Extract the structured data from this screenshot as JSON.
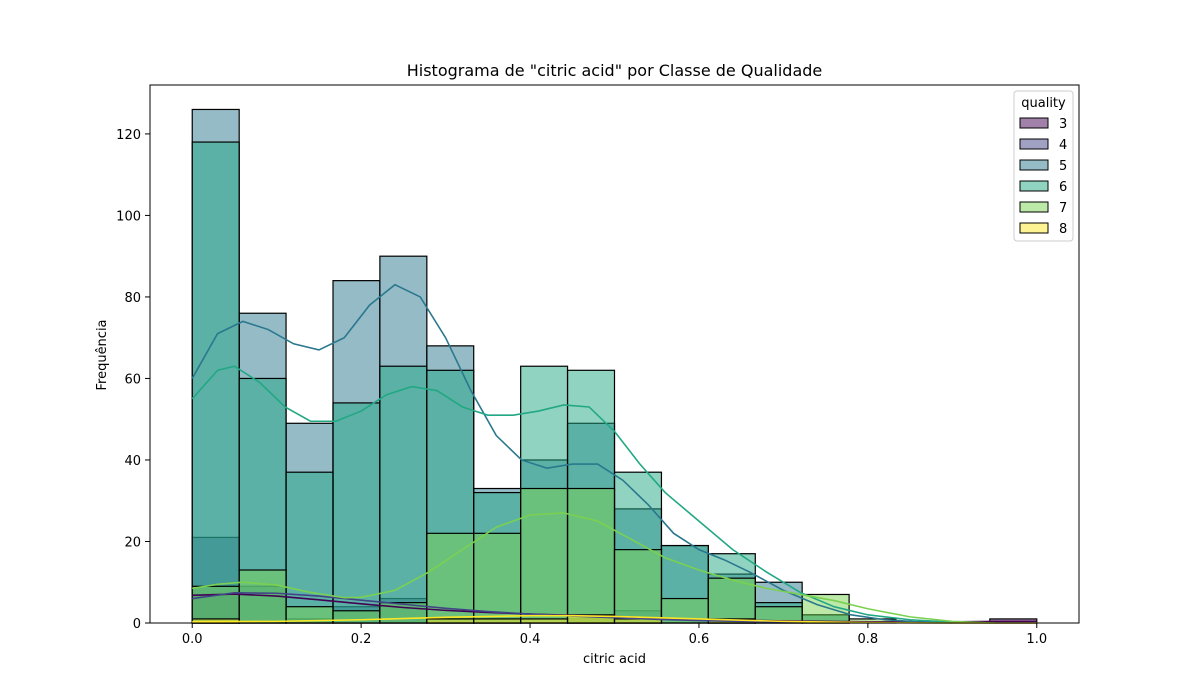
{
  "chart_data": {
    "type": "histogram",
    "title": "Histograma de \"citric acid\" por Classe de Qualidade",
    "xlabel": "citric acid",
    "ylabel": "Frequência",
    "xlim": [
      -0.05,
      1.05
    ],
    "ylim": [
      0,
      132
    ],
    "xticks": [
      0.0,
      0.2,
      0.4,
      0.6,
      0.8,
      1.0
    ],
    "xtick_labels": [
      "0.0",
      "0.2",
      "0.4",
      "0.6",
      "0.8",
      "1.0"
    ],
    "yticks": [
      0,
      20,
      40,
      60,
      80,
      100,
      120
    ],
    "ytick_labels": [
      "0",
      "20",
      "40",
      "60",
      "80",
      "100",
      "120"
    ],
    "bin_width": 0.0556,
    "bin_edges": [
      0.0,
      0.0556,
      0.1111,
      0.1667,
      0.2222,
      0.2778,
      0.3333,
      0.3889,
      0.4444,
      0.5,
      0.5556,
      0.6111,
      0.6667,
      0.7222,
      0.7778,
      0.8333,
      0.8889,
      0.9444,
      1.0
    ],
    "legend": {
      "title": "quality",
      "position": "upper right"
    },
    "series": [
      {
        "name": "3",
        "color": "#440154",
        "counts": [
          7,
          0,
          0,
          0,
          0,
          0,
          0,
          0,
          1,
          0,
          0,
          0,
          0,
          0,
          0,
          0,
          0,
          1
        ],
        "kde": [
          [
            0.0,
            6.8
          ],
          [
            0.05,
            7.1
          ],
          [
            0.1,
            6.6
          ],
          [
            0.15,
            5.7
          ],
          [
            0.2,
            4.7
          ],
          [
            0.25,
            3.8
          ],
          [
            0.3,
            3.1
          ],
          [
            0.35,
            2.6
          ],
          [
            0.4,
            2.2
          ],
          [
            0.45,
            1.9
          ],
          [
            0.5,
            1.6
          ],
          [
            0.55,
            1.2
          ],
          [
            0.6,
            0.9
          ],
          [
            0.7,
            0.5
          ],
          [
            0.8,
            0.3
          ],
          [
            0.9,
            0.3
          ],
          [
            0.95,
            0.4
          ],
          [
            1.0,
            0.4
          ]
        ]
      },
      {
        "name": "4",
        "color": "#414487",
        "counts": [
          21,
          9,
          1,
          4,
          6,
          1,
          1,
          0,
          1,
          3,
          0,
          1,
          0,
          0,
          0,
          0,
          0,
          0
        ],
        "kde": [
          [
            0.0,
            6.0
          ],
          [
            0.05,
            7.4
          ],
          [
            0.1,
            7.3
          ],
          [
            0.15,
            6.6
          ],
          [
            0.2,
            5.6
          ],
          [
            0.25,
            4.6
          ],
          [
            0.3,
            3.6
          ],
          [
            0.35,
            2.8
          ],
          [
            0.4,
            2.2
          ],
          [
            0.45,
            1.7
          ],
          [
            0.5,
            1.3
          ],
          [
            0.55,
            0.9
          ],
          [
            0.6,
            0.6
          ],
          [
            0.7,
            0.2
          ],
          [
            0.8,
            0.1
          ],
          [
            0.9,
            0.0
          ],
          [
            1.0,
            0.0
          ]
        ]
      },
      {
        "name": "5",
        "color": "#2a788e",
        "counts": [
          126,
          76,
          49,
          84,
          90,
          68,
          33,
          40,
          49,
          28,
          19,
          12,
          10,
          2,
          0,
          0,
          0,
          0
        ],
        "kde": [
          [
            0.0,
            60
          ],
          [
            0.03,
            71
          ],
          [
            0.06,
            74
          ],
          [
            0.09,
            72
          ],
          [
            0.12,
            68.5
          ],
          [
            0.15,
            67
          ],
          [
            0.18,
            70
          ],
          [
            0.21,
            78
          ],
          [
            0.24,
            83
          ],
          [
            0.27,
            80
          ],
          [
            0.3,
            70
          ],
          [
            0.33,
            57
          ],
          [
            0.36,
            46
          ],
          [
            0.39,
            40
          ],
          [
            0.42,
            38
          ],
          [
            0.45,
            39
          ],
          [
            0.48,
            39
          ],
          [
            0.51,
            35
          ],
          [
            0.54,
            29
          ],
          [
            0.57,
            22
          ],
          [
            0.6,
            18
          ],
          [
            0.63,
            15.5
          ],
          [
            0.66,
            12.5
          ],
          [
            0.7,
            8
          ],
          [
            0.74,
            4.5
          ],
          [
            0.78,
            2
          ],
          [
            0.82,
            0.8
          ],
          [
            0.86,
            0.3
          ],
          [
            0.9,
            0
          ]
        ]
      },
      {
        "name": "6",
        "color": "#22a884",
        "counts": [
          118,
          60,
          37,
          54,
          63,
          62,
          32,
          63,
          62,
          37,
          19,
          17,
          5,
          2,
          0,
          0,
          0,
          0
        ],
        "kde": [
          [
            0.0,
            55
          ],
          [
            0.03,
            62
          ],
          [
            0.05,
            63
          ],
          [
            0.08,
            59
          ],
          [
            0.11,
            53
          ],
          [
            0.14,
            49.5
          ],
          [
            0.17,
            49.5
          ],
          [
            0.2,
            52
          ],
          [
            0.23,
            56
          ],
          [
            0.26,
            58
          ],
          [
            0.29,
            57
          ],
          [
            0.32,
            53
          ],
          [
            0.35,
            51
          ],
          [
            0.38,
            51
          ],
          [
            0.41,
            52
          ],
          [
            0.44,
            53.5
          ],
          [
            0.47,
            53
          ],
          [
            0.5,
            47
          ],
          [
            0.53,
            39
          ],
          [
            0.56,
            32
          ],
          [
            0.6,
            25
          ],
          [
            0.64,
            18
          ],
          [
            0.68,
            12.5
          ],
          [
            0.72,
            7.5
          ],
          [
            0.76,
            4
          ],
          [
            0.8,
            2
          ],
          [
            0.85,
            0.8
          ],
          [
            0.9,
            0.2
          ],
          [
            0.95,
            0
          ]
        ]
      },
      {
        "name": "7",
        "color": "#7ad151",
        "counts": [
          9,
          13,
          4,
          3,
          5,
          22,
          22,
          33,
          33,
          18,
          6,
          11,
          4,
          7,
          1,
          0,
          0,
          0
        ],
        "kde": [
          [
            0.0,
            8.5
          ],
          [
            0.03,
            9.5
          ],
          [
            0.06,
            10
          ],
          [
            0.1,
            9.3
          ],
          [
            0.14,
            7.5
          ],
          [
            0.18,
            6.2
          ],
          [
            0.2,
            6.3
          ],
          [
            0.24,
            8
          ],
          [
            0.28,
            12.5
          ],
          [
            0.32,
            18
          ],
          [
            0.36,
            23.5
          ],
          [
            0.4,
            26.5
          ],
          [
            0.44,
            27
          ],
          [
            0.48,
            25
          ],
          [
            0.52,
            20.5
          ],
          [
            0.56,
            16
          ],
          [
            0.6,
            13
          ],
          [
            0.64,
            10.5
          ],
          [
            0.68,
            8.5
          ],
          [
            0.72,
            7
          ],
          [
            0.76,
            5.5
          ],
          [
            0.8,
            3.5
          ],
          [
            0.85,
            1.5
          ],
          [
            0.9,
            0.4
          ],
          [
            0.95,
            0
          ]
        ]
      },
      {
        "name": "8",
        "color": "#fde725",
        "counts": [
          1,
          0,
          0,
          0,
          0,
          1,
          1,
          1,
          2,
          1,
          0,
          1,
          0,
          0,
          0,
          0,
          0,
          0
        ],
        "kde": [
          [
            0.0,
            0.3
          ],
          [
            0.1,
            0.4
          ],
          [
            0.2,
            0.8
          ],
          [
            0.3,
            1.4
          ],
          [
            0.4,
            1.8
          ],
          [
            0.45,
            1.8
          ],
          [
            0.5,
            1.6
          ],
          [
            0.6,
            1.0
          ],
          [
            0.7,
            0.4
          ],
          [
            0.8,
            0.1
          ],
          [
            0.9,
            0.0
          ],
          [
            1.0,
            0.0
          ]
        ]
      }
    ]
  }
}
